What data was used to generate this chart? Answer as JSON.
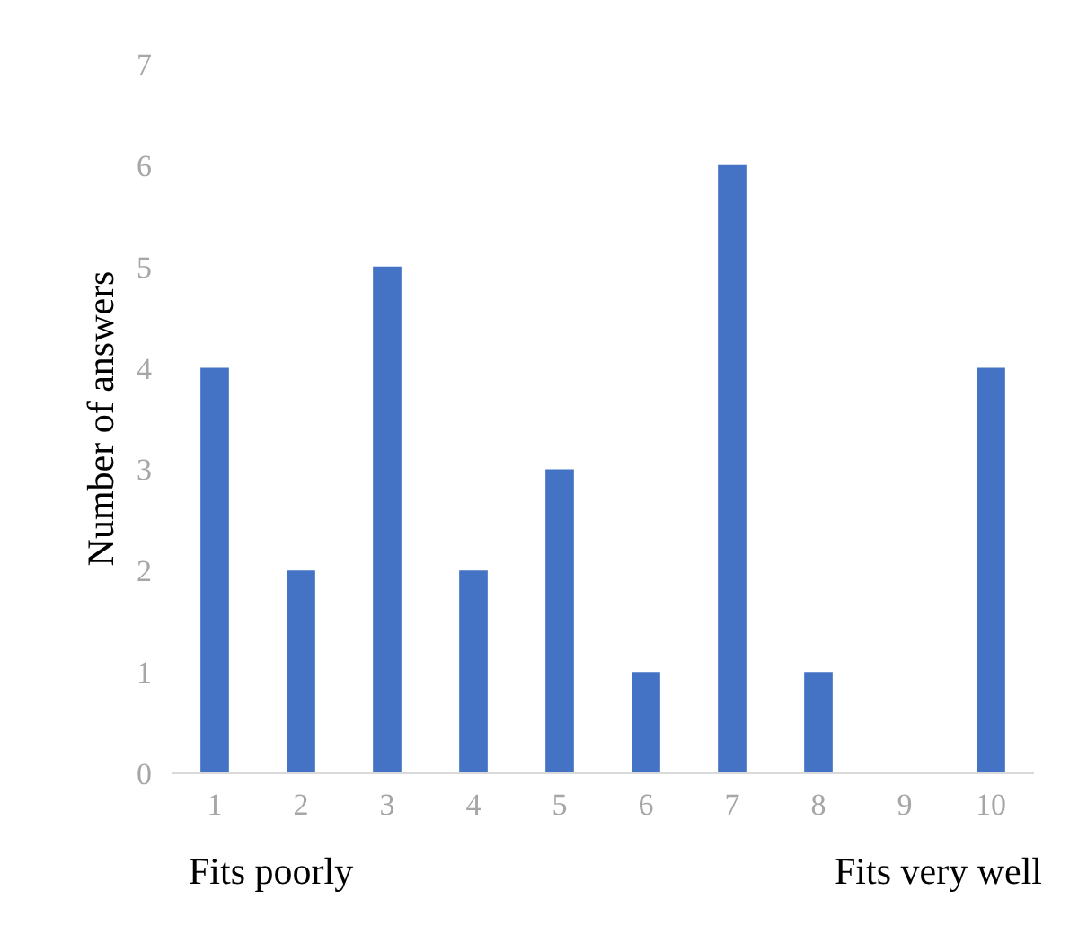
{
  "chart_data": {
    "type": "bar",
    "ylabel": "Number of answers",
    "categories": [
      "1",
      "2",
      "3",
      "4",
      "5",
      "6",
      "7",
      "8",
      "9",
      "10"
    ],
    "values": [
      4,
      2,
      5,
      2,
      3,
      1,
      6,
      1,
      0,
      4
    ],
    "color": "#4472c4",
    "ylim": [
      0,
      7
    ],
    "yticks": [
      0,
      1,
      2,
      3,
      4,
      5,
      6,
      7
    ],
    "grid": false,
    "annotations": [
      "Fits poorly",
      "Fits very well"
    ]
  }
}
